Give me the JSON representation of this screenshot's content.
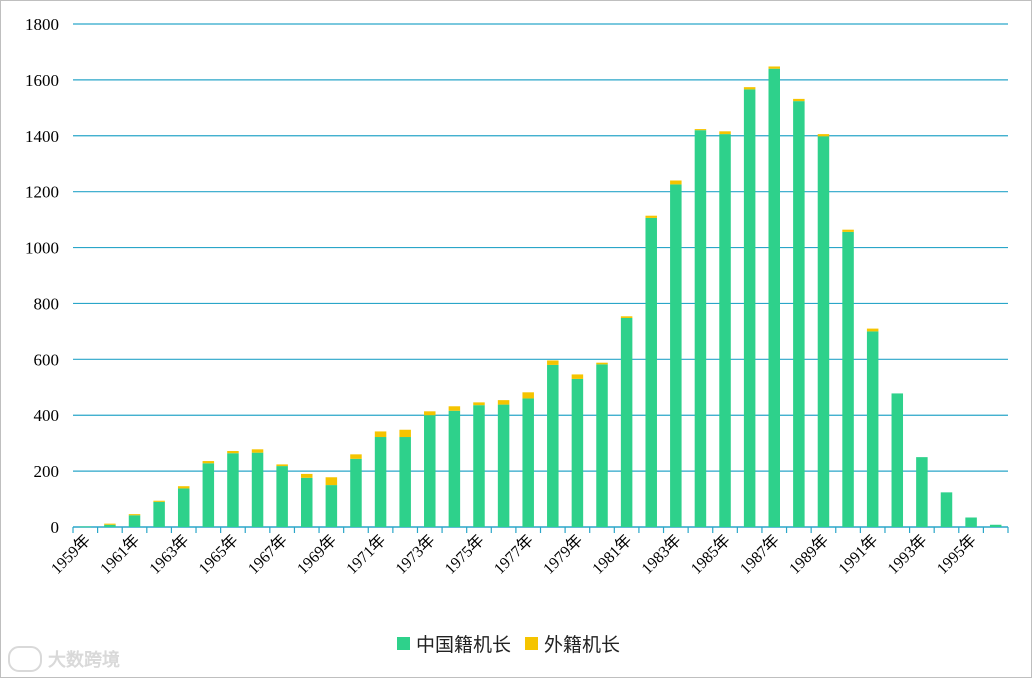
{
  "chart_data": {
    "type": "bar",
    "stacked": true,
    "title": "",
    "xlabel": "",
    "ylabel": "",
    "ylim": [
      0,
      1800
    ],
    "yticks": [
      0,
      200,
      400,
      600,
      800,
      1000,
      1200,
      1400,
      1600,
      1800
    ],
    "grid": true,
    "legend_position": "bottom",
    "categories": [
      "1959年",
      "1960年",
      "1961年",
      "1962年",
      "1963年",
      "1964年",
      "1965年",
      "1966年",
      "1967年",
      "1968年",
      "1969年",
      "1970年",
      "1971年",
      "1972年",
      "1973年",
      "1974年",
      "1975年",
      "1976年",
      "1977年",
      "1978年",
      "1979年",
      "1980年",
      "1981年",
      "1982年",
      "1983年",
      "1984年",
      "1985年",
      "1986年",
      "1987年",
      "1988年",
      "1989年",
      "1990年",
      "1991年",
      "1992年",
      "1993年",
      "1994年",
      "1995年",
      "1996年"
    ],
    "tick_labels": [
      "1959年",
      "1961年",
      "1963年",
      "1965年",
      "1967年",
      "1969年",
      "1971年",
      "1973年",
      "1975年",
      "1977年",
      "1979年",
      "1981年",
      "1983年",
      "1985年",
      "1987年",
      "1989年",
      "1991年",
      "1993年",
      "1995年"
    ],
    "series": [
      {
        "name": "中国籍机长",
        "color": "#2ed18b",
        "values": [
          2,
          8,
          42,
          90,
          138,
          228,
          264,
          266,
          218,
          176,
          150,
          244,
          322,
          322,
          400,
          416,
          436,
          438,
          460,
          580,
          530,
          582,
          748,
          1106,
          1226,
          1420,
          1406,
          1566,
          1640,
          1524,
          1398,
          1056,
          700,
          478,
          250,
          124,
          34,
          8
        ]
      },
      {
        "name": "外籍机长",
        "color": "#f5c400",
        "values": [
          0,
          4,
          4,
          4,
          8,
          8,
          8,
          12,
          6,
          14,
          28,
          16,
          20,
          26,
          14,
          16,
          10,
          16,
          22,
          16,
          16,
          6,
          6,
          8,
          14,
          4,
          10,
          8,
          8,
          8,
          8,
          8,
          10,
          0,
          0,
          0,
          0,
          0
        ]
      }
    ]
  },
  "legend": {
    "items": [
      {
        "label": "中国籍机长",
        "color": "#2ed18b"
      },
      {
        "label": "外籍机长",
        "color": "#f5c400"
      }
    ]
  },
  "watermark": {
    "text": "大数跨境"
  },
  "colors": {
    "grid": "#2aa6c9",
    "frame": "#bfbfbf"
  }
}
